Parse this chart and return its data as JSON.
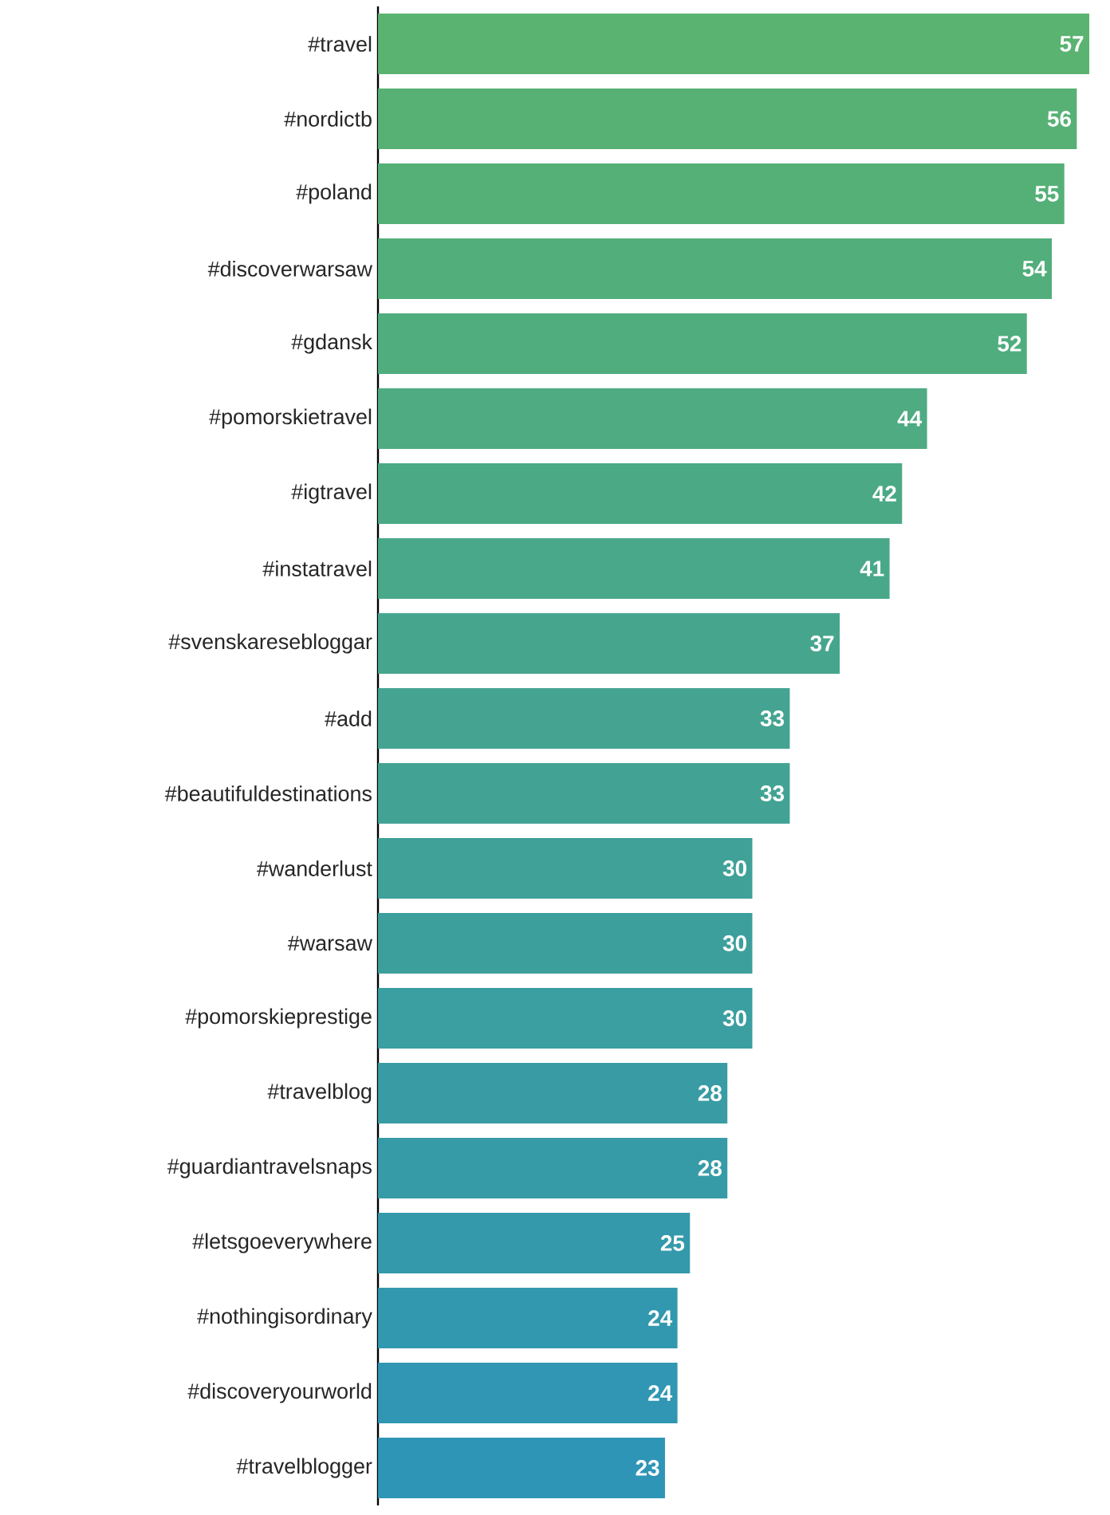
{
  "chart_data": {
    "type": "bar",
    "orientation": "horizontal",
    "data_labels": true,
    "categories": [
      "#travel",
      "#nordictb",
      "#poland",
      "#discoverwarsaw",
      "#gdansk",
      "#pomorskietravel",
      "#igtravel",
      "#instatravel",
      "#svenskaresebloggar",
      "#add",
      "#beautifuldestinations",
      "#wanderlust",
      "#warsaw",
      "#pomorskieprestige",
      "#travelblog",
      "#guardiantravelsnaps",
      "#letsgoeverywhere",
      "#nothingisordinary",
      "#discoveryourworld",
      "#travelblogger"
    ],
    "values": [
      57,
      56,
      55,
      54,
      52,
      44,
      42,
      41,
      37,
      33,
      33,
      30,
      30,
      30,
      28,
      28,
      25,
      24,
      24,
      23
    ],
    "colors": [
      "#5ab370",
      "#57b174",
      "#55b077",
      "#52ae7a",
      "#50ad7e",
      "#4eab82",
      "#4ba986",
      "#49a889",
      "#46a68d",
      "#44a491",
      "#42a394",
      "#40a198",
      "#3d9f9c",
      "#3b9ea0",
      "#399ca4",
      "#369ba7",
      "#3499ab",
      "#3298af",
      "#3096b3",
      "#2e95b6"
    ]
  }
}
